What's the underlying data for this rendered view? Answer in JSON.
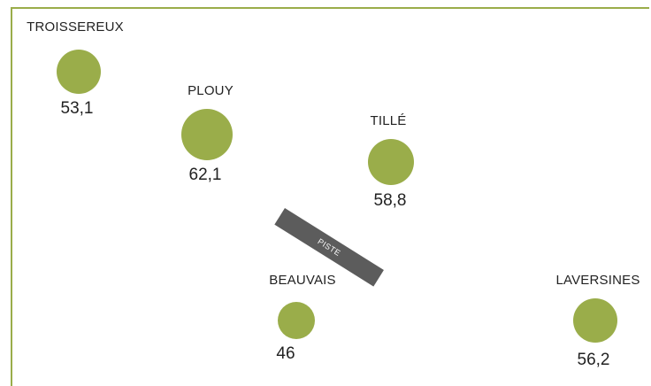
{
  "map": {
    "runway_label": "PISTE",
    "dot_color": "#9aad4a",
    "runway_color": "#5c5c5c",
    "stations": [
      {
        "name": "TROISSEREUX",
        "value": "53,1"
      },
      {
        "name": "PLOUY",
        "value": "62,1"
      },
      {
        "name": "TILLÉ",
        "value": "58,8"
      },
      {
        "name": "BEAUVAIS",
        "value": "46"
      },
      {
        "name": "LAVERSINES",
        "value": "56,2"
      }
    ]
  }
}
